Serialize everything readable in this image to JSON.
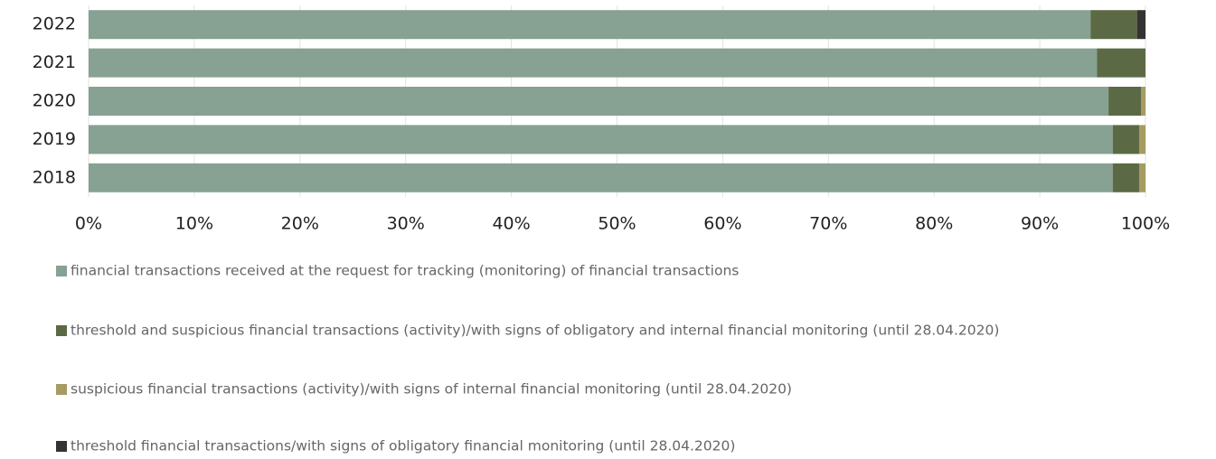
{
  "chart_data": {
    "type": "stacked-bar-horizontal",
    "categories": [
      "2022",
      "2021",
      "2020",
      "2019",
      "2018"
    ],
    "series": [
      {
        "name": "financial transactions received at the request for tracking (monitoring) of financial transactions",
        "color": "#87a192",
        "values": [
          94.8,
          95.4,
          96.5,
          96.9,
          96.9
        ]
      },
      {
        "name": "threshold and suspicious financial transactions (activity)/with signs of obligatory and internal financial monitoring (until 28.04.2020)",
        "color": "#5b6a45",
        "values": [
          4.4,
          4.6,
          3.1,
          2.5,
          2.5
        ]
      },
      {
        "name": "suspicious financial transactions (activity)/with signs of internal financial monitoring (until 28.04.2020)",
        "color": "#a69b62",
        "values": [
          0,
          0,
          0.4,
          0.6,
          0.6
        ]
      },
      {
        "name": "threshold financial transactions/with signs of obligatory financial monitoring (until 28.04.2020)",
        "color": "#333333",
        "values": [
          0.8,
          0,
          0,
          0,
          0
        ]
      }
    ],
    "xlim": [
      0,
      100
    ],
    "xticks": [
      {
        "value": 0,
        "label": "0%"
      },
      {
        "value": 10,
        "label": "10%"
      },
      {
        "value": 20,
        "label": "20%"
      },
      {
        "value": 30,
        "label": "30%"
      },
      {
        "value": 40,
        "label": "40%"
      },
      {
        "value": 50,
        "label": "50%"
      },
      {
        "value": 60,
        "label": "60%"
      },
      {
        "value": 70,
        "label": "70%"
      },
      {
        "value": 80,
        "label": "80%"
      },
      {
        "value": 90,
        "label": "90%"
      },
      {
        "value": 100,
        "label": "100%"
      }
    ],
    "grid": true,
    "legend": "bottom"
  }
}
